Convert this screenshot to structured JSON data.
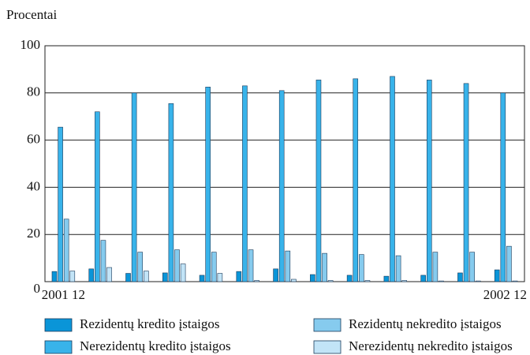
{
  "chart_data": {
    "type": "bar",
    "y_label": "Procentai",
    "categories": [
      "2001 12",
      null,
      null,
      null,
      null,
      null,
      null,
      null,
      null,
      null,
      null,
      null,
      "2002 12"
    ],
    "series": [
      {
        "name": "Rezidentų kredito įstaigos",
        "color": "#0a95d8",
        "values": [
          4.3,
          5.4,
          3.5,
          3.7,
          2.7,
          4.3,
          5.4,
          3,
          2.7,
          2.3,
          2.7,
          3.7,
          5
        ]
      },
      {
        "name": "Nerezidentų kredito įstaigos",
        "color": "#38b3ea",
        "values": [
          65.5,
          72,
          80,
          75.5,
          82.5,
          83,
          81,
          85.5,
          86,
          87,
          85.5,
          84,
          80
        ]
      },
      {
        "name": "Rezidentų nekredito įstaigos",
        "color": "#86cbee",
        "values": [
          26.5,
          17.5,
          12.5,
          13.5,
          12.5,
          13.5,
          13,
          12,
          11.5,
          11,
          12.5,
          12.5,
          15
        ]
      },
      {
        "name": "Nerezidentų nekredito įstaigos",
        "color": "#c2e4f7",
        "values": [
          4.5,
          6,
          4.5,
          7.5,
          3.5,
          0.5,
          1,
          0.5,
          0.5,
          0.5,
          0.3,
          0.3,
          0.3
        ]
      }
    ],
    "ylim": [
      0,
      100
    ],
    "yticks": [
      0,
      20,
      40,
      60,
      80,
      100
    ],
    "grid": true
  }
}
